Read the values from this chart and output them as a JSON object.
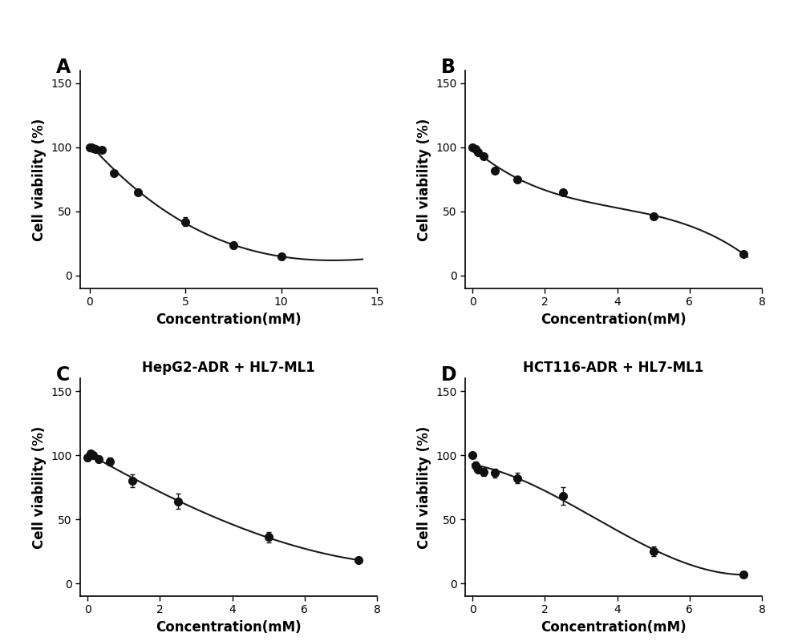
{
  "panels": [
    {
      "label": "A",
      "title": "",
      "xlabel": "Concentration(mM)",
      "ylabel": "Cell viability (%)",
      "xlim": [
        -0.5,
        15
      ],
      "ylim": [
        -10,
        160
      ],
      "xticks": [
        0,
        5,
        10,
        15
      ],
      "yticks": [
        0,
        50,
        100,
        150
      ],
      "x": [
        0.0,
        0.078,
        0.156,
        0.313,
        0.625,
        1.25,
        2.5,
        5.0,
        7.5,
        10.0
      ],
      "y": [
        100.0,
        100.0,
        99.5,
        99.0,
        98.0,
        80.0,
        65.0,
        42.0,
        23.5,
        15.0
      ],
      "yerr": [
        1.5,
        1.5,
        1.5,
        1.5,
        1.5,
        2.0,
        2.0,
        3.5,
        2.5,
        2.0
      ],
      "curve_xlim_end": 14.25
    },
    {
      "label": "B",
      "title": "",
      "xlabel": "Concentration(mM)",
      "ylabel": "Cell viability (%)",
      "xlim": [
        -0.2,
        8
      ],
      "ylim": [
        -10,
        160
      ],
      "xticks": [
        0,
        2,
        4,
        6,
        8
      ],
      "yticks": [
        0,
        50,
        100,
        150
      ],
      "x": [
        0.0,
        0.078,
        0.156,
        0.313,
        0.625,
        1.25,
        2.5,
        5.0,
        7.5
      ],
      "y": [
        100.0,
        99.0,
        96.0,
        93.0,
        82.0,
        75.0,
        65.0,
        46.0,
        17.0
      ],
      "yerr": [
        1.0,
        1.0,
        1.5,
        1.5,
        2.0,
        2.0,
        2.0,
        2.5,
        2.0
      ],
      "curve_xlim_end": 7.6
    },
    {
      "label": "C",
      "title": "HepG2-ADR + HL7-ML1",
      "xlabel": "Concentration(mM)",
      "ylabel": "Cell viability (%)",
      "xlim": [
        -0.2,
        8
      ],
      "ylim": [
        -10,
        160
      ],
      "xticks": [
        0,
        2,
        4,
        6,
        8
      ],
      "yticks": [
        0,
        50,
        100,
        150
      ],
      "x": [
        0.0,
        0.078,
        0.156,
        0.313,
        0.625,
        1.25,
        2.5,
        5.0,
        7.5
      ],
      "y": [
        98.0,
        101.0,
        100.0,
        97.0,
        95.0,
        80.0,
        64.0,
        36.0,
        18.0
      ],
      "yerr": [
        2.0,
        2.5,
        2.0,
        2.5,
        3.0,
        5.0,
        6.0,
        4.0,
        2.0
      ],
      "curve_xlim_end": 7.6
    },
    {
      "label": "D",
      "title": "HCT116-ADR + HL7-ML1",
      "xlabel": "Concentration(mM)",
      "ylabel": "Cell viability (%)",
      "xlim": [
        -0.2,
        8
      ],
      "ylim": [
        -10,
        160
      ],
      "xticks": [
        0,
        2,
        4,
        6,
        8
      ],
      "yticks": [
        0,
        50,
        100,
        150
      ],
      "x": [
        0.0,
        0.078,
        0.156,
        0.313,
        0.625,
        1.25,
        2.5,
        5.0,
        7.5
      ],
      "y": [
        100.0,
        92.0,
        89.0,
        87.0,
        86.0,
        82.0,
        68.0,
        25.0,
        7.0
      ],
      "yerr": [
        2.0,
        3.0,
        3.0,
        3.0,
        3.5,
        4.0,
        7.0,
        3.5,
        2.0
      ],
      "curve_xlim_end": 7.6
    }
  ],
  "bg_color": "#ffffff",
  "line_color": "#1a1a1a",
  "marker_color": "#111111",
  "marker_size": 7,
  "line_width": 1.5,
  "label_fontsize": 12,
  "tick_fontsize": 10,
  "title_fontsize": 12,
  "panel_label_fontsize": 17
}
